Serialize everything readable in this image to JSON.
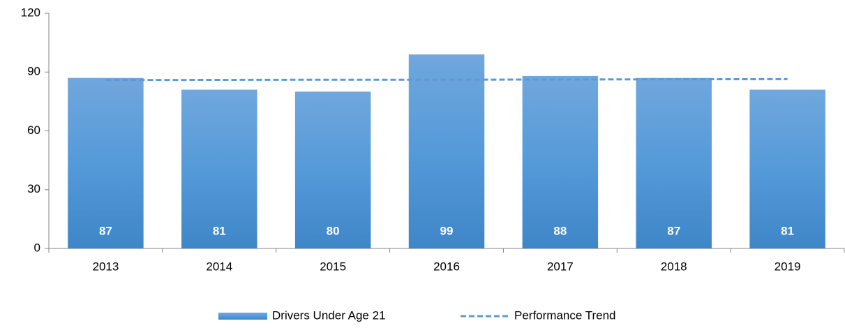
{
  "chart_data": {
    "type": "bar",
    "categories": [
      "2013",
      "2014",
      "2015",
      "2016",
      "2017",
      "2018",
      "2019"
    ],
    "series": [
      {
        "name": "Drivers Under Age 21",
        "color": "#5b9bd5",
        "values": [
          87,
          81,
          80,
          99,
          88,
          87,
          81
        ]
      },
      {
        "name": "Performance Trend",
        "color": "#5b9bd5",
        "type": "line",
        "dashed": true,
        "values": [
          85.9,
          86.0,
          86.1,
          86.1,
          86.2,
          86.3,
          86.4
        ]
      }
    ],
    "ylim": [
      0,
      120
    ],
    "yticks": [
      0,
      30,
      60,
      90,
      120
    ],
    "legend": "bottom"
  }
}
